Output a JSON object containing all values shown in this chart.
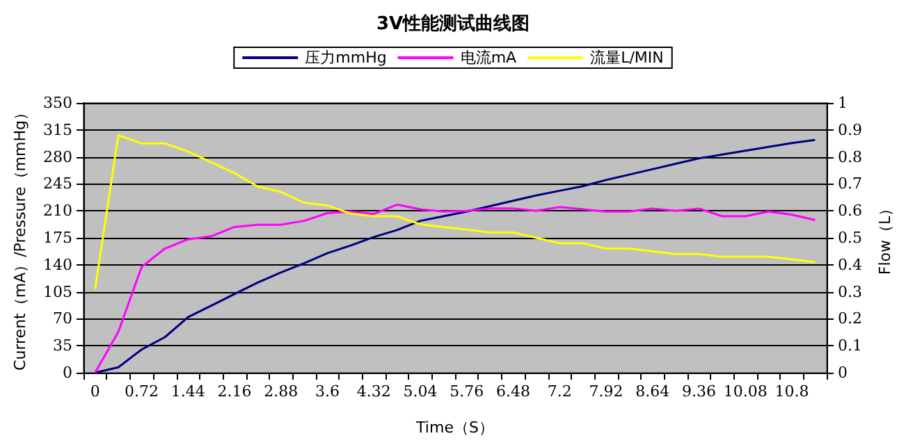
{
  "chart_data": {
    "type": "line",
    "title": "3V性能测试曲线图",
    "xlabel": "Time（S）",
    "ylabel": "Current（mA）/Pressure（mmHg）",
    "y2label": "Flow（L）",
    "categories": [
      "0",
      null,
      "0.72",
      null,
      "1.44",
      null,
      "2.16",
      null,
      "2.88",
      null,
      "3.6",
      null,
      "4.32",
      null,
      "5.04",
      null,
      "5.76",
      null,
      "6.48",
      null,
      "7.2",
      null,
      "7.92",
      null,
      "8.64",
      null,
      "9.36",
      null,
      "10.08",
      null,
      "10.8",
      null
    ],
    "series": [
      {
        "name": "压力mmHg",
        "color": "#000080",
        "values": [
          0,
          7,
          30,
          46,
          72,
          87,
          102,
          117,
          130,
          142,
          155,
          165,
          176,
          185,
          197,
          203,
          209,
          216,
          223,
          230,
          236,
          242,
          250,
          257,
          264,
          271,
          278,
          283,
          288,
          293,
          298,
          302
        ]
      },
      {
        "name": "电流mA",
        "color": "#ff00ff",
        "values": [
          0,
          53,
          137,
          161,
          173,
          177,
          189,
          192,
          192,
          197,
          207,
          209,
          206,
          218,
          212,
          209,
          210,
          213,
          213,
          210,
          215,
          212,
          209,
          209,
          213,
          210,
          213,
          203,
          203,
          209,
          205,
          198
        ]
      },
      {
        "name": "流量L/MIN",
        "color": "#ffff00",
        "axis": "y2",
        "values": [
          0.31,
          0.88,
          0.85,
          0.85,
          0.82,
          0.78,
          0.74,
          0.69,
          0.67,
          0.63,
          0.62,
          0.59,
          0.58,
          0.58,
          0.55,
          0.54,
          0.53,
          0.52,
          0.52,
          0.5,
          0.48,
          0.48,
          0.46,
          0.46,
          0.45,
          0.44,
          0.44,
          0.43,
          0.43,
          0.43,
          0.42,
          0.41
        ]
      }
    ],
    "ylim": [
      0,
      350
    ],
    "yticks": [
      0,
      35,
      70,
      105,
      140,
      175,
      210,
      245,
      280,
      315,
      350
    ],
    "y2lim": [
      0,
      1
    ],
    "y2ticks": [
      0,
      0.1,
      0.2,
      0.3,
      0.4,
      0.5,
      0.6,
      0.7,
      0.8,
      0.9,
      1
    ],
    "grid": "y",
    "legend": "top",
    "marker": "none",
    "line_style": "solid"
  }
}
